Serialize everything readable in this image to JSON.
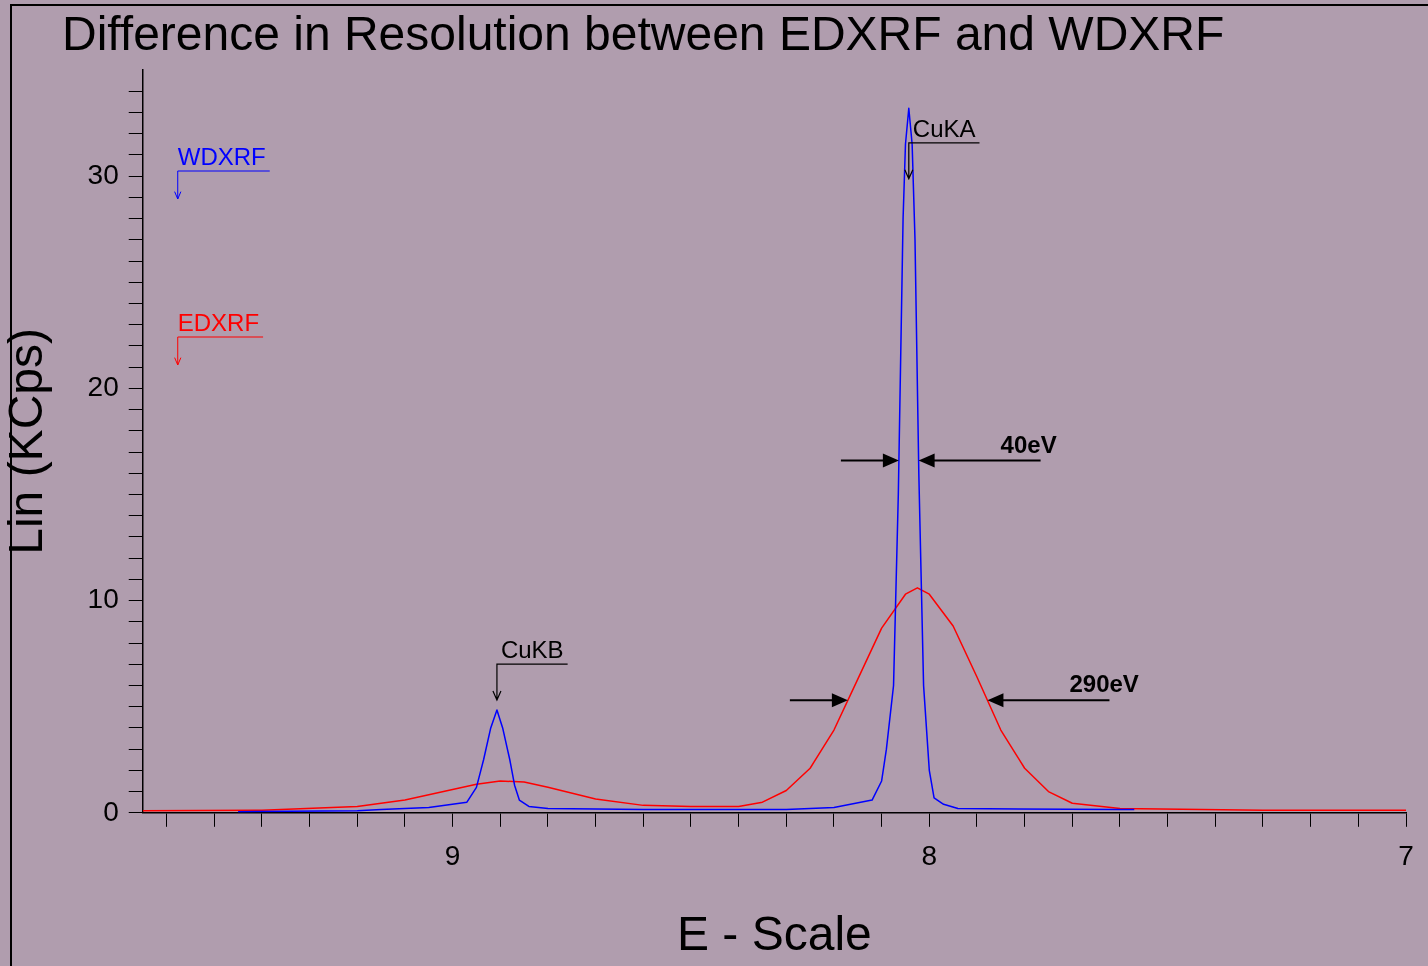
{
  "chart_data": {
    "type": "line",
    "title": "Difference in Resolution between EDXRF and WDXRF",
    "xlabel": "E - Scale",
    "ylabel": "Lin (KCps)",
    "xlim": [
      9.65,
      7.0
    ],
    "ylim": [
      0,
      35
    ],
    "xticks": [
      {
        "value": 9.6,
        "label": null
      },
      {
        "value": 9.5,
        "label": null
      },
      {
        "value": 9.4,
        "label": null
      },
      {
        "value": 9.3,
        "label": null
      },
      {
        "value": 9.2,
        "label": null
      },
      {
        "value": 9.1,
        "label": null
      },
      9,
      {
        "value": 8.9,
        "label": null
      },
      {
        "value": 8.8,
        "label": null
      },
      {
        "value": 8.7,
        "label": null
      },
      {
        "value": 8.6,
        "label": null
      },
      {
        "value": 8.5,
        "label": null
      },
      {
        "value": 8.4,
        "label": null
      },
      {
        "value": 8.3,
        "label": null
      },
      {
        "value": 8.2,
        "label": null
      },
      {
        "value": 8.1,
        "label": null
      },
      8,
      {
        "value": 7.9,
        "label": null
      },
      {
        "value": 7.8,
        "label": null
      },
      {
        "value": 7.7,
        "label": null
      },
      {
        "value": 7.6,
        "label": null
      },
      {
        "value": 7.5,
        "label": null
      },
      {
        "value": 7.4,
        "label": null
      },
      {
        "value": 7.3,
        "label": null
      },
      {
        "value": 7.2,
        "label": null
      },
      {
        "value": 7.1,
        "label": null
      },
      7
    ],
    "yticks": [
      0,
      {
        "value": 1,
        "label": null
      },
      {
        "value": 2,
        "label": null
      },
      {
        "value": 3,
        "label": null
      },
      {
        "value": 4,
        "label": null
      },
      {
        "value": 5,
        "label": null
      },
      {
        "value": 6,
        "label": null
      },
      {
        "value": 7,
        "label": null
      },
      {
        "value": 8,
        "label": null
      },
      {
        "value": 9,
        "label": null
      },
      10,
      {
        "value": 11,
        "label": null
      },
      {
        "value": 12,
        "label": null
      },
      {
        "value": 13,
        "label": null
      },
      {
        "value": 14,
        "label": null
      },
      {
        "value": 15,
        "label": null
      },
      {
        "value": 16,
        "label": null
      },
      {
        "value": 17,
        "label": null
      },
      {
        "value": 18,
        "label": null
      },
      {
        "value": 19,
        "label": null
      },
      20,
      {
        "value": 21,
        "label": null
      },
      {
        "value": 22,
        "label": null
      },
      {
        "value": 23,
        "label": null
      },
      {
        "value": 24,
        "label": null
      },
      {
        "value": 25,
        "label": null
      },
      {
        "value": 26,
        "label": null
      },
      {
        "value": 27,
        "label": null
      },
      {
        "value": 28,
        "label": null
      },
      {
        "value": 29,
        "label": null
      },
      30,
      {
        "value": 31,
        "label": null
      },
      {
        "value": 32,
        "label": null
      },
      {
        "value": 33,
        "label": null
      },
      {
        "value": 34,
        "label": null
      }
    ],
    "grid": false,
    "legend": "top left",
    "marker": "none",
    "line_style": "solid",
    "series": [
      {
        "name": "WDXRF",
        "color": "#0000ff",
        "x": [
          9.45,
          9.2,
          9.15,
          9.05,
          8.97,
          8.95,
          8.935,
          8.92,
          8.907,
          8.895,
          8.88,
          8.87,
          8.86,
          8.84,
          8.8,
          8.6,
          8.3,
          8.2,
          8.12,
          8.1,
          8.09,
          8.075,
          8.065,
          8.055,
          8.05,
          8.043,
          8.036,
          8.03,
          8.022,
          8.012,
          8.0,
          7.99,
          7.97,
          7.94,
          7.6,
          7.57
        ],
        "values": [
          0.05,
          0.1,
          0.15,
          0.25,
          0.5,
          1.2,
          2.5,
          4.0,
          4.84,
          4.0,
          2.5,
          1.3,
          0.6,
          0.3,
          0.2,
          0.15,
          0.15,
          0.25,
          0.6,
          1.5,
          3.0,
          6,
          15,
          28,
          31.5,
          33.2,
          31.5,
          27,
          16,
          6,
          2,
          0.7,
          0.4,
          0.2,
          0.15,
          0.15
        ]
      },
      {
        "name": "EDXRF",
        "color": "#ff0000",
        "x": [
          9.65,
          9.4,
          9.2,
          9.1,
          9.0,
          8.95,
          8.9,
          8.85,
          8.8,
          8.7,
          8.6,
          8.5,
          8.4,
          8.35,
          8.3,
          8.25,
          8.2,
          8.15,
          8.1,
          8.05,
          8.025,
          8.0,
          7.95,
          7.9,
          7.85,
          7.8,
          7.75,
          7.7,
          7.6,
          7.3,
          7.0
        ],
        "values": [
          0.1,
          0.12,
          0.3,
          0.6,
          1.1,
          1.35,
          1.5,
          1.45,
          1.2,
          0.65,
          0.35,
          0.3,
          0.3,
          0.5,
          1.05,
          2.1,
          3.9,
          6.3,
          8.7,
          10.3,
          10.6,
          10.3,
          8.8,
          6.4,
          3.9,
          2.1,
          1.0,
          0.45,
          0.2,
          0.12,
          0.12
        ]
      }
    ],
    "annotations": [
      {
        "text": "CuKA",
        "x": 8.043,
        "y": 29.4
      },
      {
        "text": "CuKB",
        "x": 8.907,
        "y": 4.84
      },
      "40eV",
      "290eV"
    ]
  }
}
